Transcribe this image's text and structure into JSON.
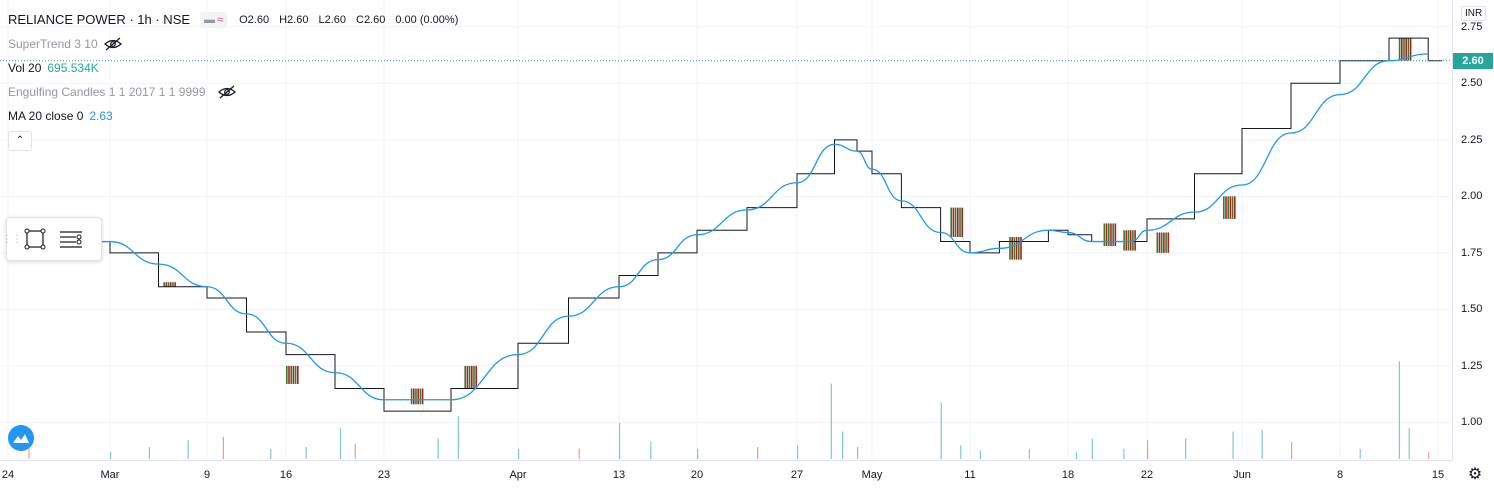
{
  "header": {
    "symbol_title": "RELIANCE POWER · 1h · NSE",
    "open_label": "O",
    "open": "2.60",
    "high_label": "H",
    "high": "2.60",
    "low_label": "L",
    "low": "2.60",
    "close_label": "C",
    "close": "2.60",
    "change": "0.00 (0.00%)"
  },
  "indicators": {
    "supertrend": "SuperTrend 3 10",
    "volume_label": "Vol 20",
    "volume_value": "695.534K",
    "engulfing": "Engulfing Candles 1 1 2017 1 1 9999",
    "ma_label": "MA 20 close 0",
    "ma_value": "2.63"
  },
  "price_scale": {
    "currency": "INR",
    "last_price": "2.60",
    "ticks": [
      "2.75",
      "2.50",
      "2.25",
      "2.00",
      "1.75",
      "1.50",
      "1.25",
      "1.00"
    ]
  },
  "time_scale": {
    "labels": [
      "24",
      "Mar",
      "9",
      "16",
      "23",
      "Apr",
      "13",
      "20",
      "27",
      "May",
      "11",
      "18",
      "22",
      "Jun",
      "8",
      "15"
    ]
  },
  "icons": {
    "hide_supertrend": "eye-off-icon",
    "hide_engulfing": "eye-off-icon",
    "collapse": "chevron-up-icon",
    "rectangle_tool": "rectangle-icon",
    "settings_tool": "lines-settings-icon",
    "logo": "tradingview-logo-icon",
    "gear": "gear-icon"
  },
  "colors": {
    "ma_line": "#2196f3",
    "up": "#26a69a",
    "down": "#ef5350",
    "candle_up_fill": "#2e7d32",
    "candle_down_fill": "#b71c1c"
  },
  "chart_data": {
    "type": "line",
    "title": "RELIANCE POWER · 1h · NSE",
    "xlabel": "",
    "ylabel": "",
    "ylim": [
      0.9,
      2.78
    ],
    "x": [
      "24",
      "Mar",
      "9",
      "16",
      "23",
      "Apr",
      "13",
      "20",
      "27",
      "May",
      "11",
      "18",
      "22",
      "Jun",
      "8",
      "15"
    ],
    "series": [
      {
        "name": "MA 20 close 0",
        "x": [
          0,
          1,
          1.5,
          2,
          2.5,
          3,
          3.5,
          4,
          4.5,
          5,
          5.5,
          6,
          6.5,
          7,
          7.5,
          8,
          8.5,
          8.8,
          9,
          9.3,
          9.7,
          10,
          10.3,
          10.8,
          11,
          11.3,
          11.8,
          12,
          12.5,
          13,
          13.5,
          14,
          14.5,
          14.9
        ],
        "values": [
          1.75,
          1.8,
          1.7,
          1.6,
          1.48,
          1.35,
          1.22,
          1.1,
          1.1,
          1.3,
          1.47,
          1.6,
          1.72,
          1.83,
          1.94,
          2.06,
          2.23,
          2.2,
          2.12,
          1.98,
          1.84,
          1.75,
          1.77,
          1.85,
          1.84,
          1.8,
          1.8,
          1.85,
          1.93,
          2.05,
          2.28,
          2.45,
          2.6,
          2.63
        ]
      },
      {
        "name": "Close",
        "x": [
          0.3,
          1,
          1.5,
          2,
          2.5,
          3,
          3.5,
          4,
          4.5,
          5,
          5.5,
          6,
          6.5,
          7,
          7.5,
          8,
          8.5,
          8.8,
          9,
          9.3,
          9.7,
          10,
          10.3,
          10.8,
          11,
          11.3,
          11.8,
          12,
          12.5,
          13,
          13.5,
          14,
          14.5,
          14.9
        ],
        "values": [
          1.8,
          1.75,
          1.6,
          1.55,
          1.4,
          1.3,
          1.15,
          1.05,
          1.15,
          1.35,
          1.55,
          1.65,
          1.75,
          1.85,
          1.95,
          2.1,
          2.25,
          2.2,
          2.1,
          1.95,
          1.8,
          1.75,
          1.8,
          1.85,
          1.83,
          1.8,
          1.8,
          1.9,
          2.1,
          2.3,
          2.5,
          2.6,
          2.7,
          2.6
        ]
      }
    ],
    "volume": {
      "x": [
        0.2,
        1.0,
        1.4,
        1.8,
        2.2,
        2.8,
        3.2,
        3.55,
        3.7,
        4.4,
        4.55,
        5.0,
        5.6,
        6.0,
        6.4,
        7.0,
        7.6,
        8.0,
        8.45,
        8.6,
        8.8,
        9.7,
        9.9,
        10.1,
        10.6,
        11.1,
        11.3,
        11.7,
        12.0,
        12.4,
        12.9,
        13.2,
        13.5,
        14.2,
        14.6,
        14.7,
        14.9
      ],
      "values": [
        60,
        40,
        70,
        110,
        130,
        60,
        70,
        180,
        90,
        120,
        250,
        60,
        60,
        210,
        100,
        60,
        70,
        80,
        440,
        160,
        70,
        330,
        80,
        50,
        60,
        40,
        120,
        60,
        110,
        120,
        160,
        170,
        100,
        60,
        570,
        180,
        40
      ],
      "ylim": [
        0,
        700
      ]
    }
  }
}
